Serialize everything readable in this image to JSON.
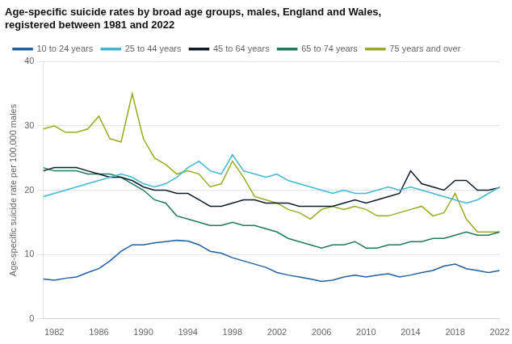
{
  "chart_data": {
    "type": "line",
    "title": [
      "Age-specific suicide rates by broad age groups, males, England and Wales,",
      "registered between 1981 and 2022"
    ],
    "ylabel": "Age-specific suicide rate per 100,000 males",
    "x": [
      1981,
      1982,
      1983,
      1984,
      1985,
      1986,
      1987,
      1988,
      1989,
      1990,
      1991,
      1992,
      1993,
      1994,
      1995,
      1996,
      1997,
      1998,
      1999,
      2000,
      2001,
      2002,
      2003,
      2004,
      2005,
      2006,
      2007,
      2008,
      2009,
      2010,
      2011,
      2012,
      2013,
      2014,
      2015,
      2016,
      2017,
      2018,
      2019,
      2020,
      2021,
      2022
    ],
    "series": [
      {
        "name": "10 to 24 years",
        "color": "#1f5fa6",
        "values": [
          6.2,
          6.0,
          6.3,
          6.5,
          7.2,
          7.8,
          9.0,
          10.5,
          11.5,
          11.5,
          11.8,
          12.0,
          12.2,
          12.1,
          11.5,
          10.5,
          10.2,
          9.5,
          9.0,
          8.5,
          8.0,
          7.2,
          6.8,
          6.5,
          6.2,
          5.8,
          6.0,
          6.5,
          6.8,
          6.5,
          6.8,
          7.0,
          6.5,
          6.8,
          7.2,
          7.5,
          8.2,
          8.5,
          7.8,
          7.5,
          7.2,
          7.5
        ]
      },
      {
        "name": "25 to 44 years",
        "color": "#41b8d5",
        "values": [
          19.0,
          19.5,
          20.0,
          20.5,
          21.0,
          21.5,
          22.0,
          22.5,
          22.0,
          21.0,
          20.5,
          21.0,
          22.0,
          23.5,
          24.5,
          23.0,
          22.5,
          25.5,
          23.0,
          22.5,
          22.0,
          22.5,
          21.5,
          21.0,
          20.5,
          20.0,
          19.5,
          20.0,
          19.5,
          19.5,
          20.0,
          20.5,
          20.0,
          20.5,
          20.0,
          19.5,
          19.0,
          18.5,
          18.0,
          18.5,
          19.5,
          20.5
        ]
      },
      {
        "name": "45 to 64 years",
        "color": "#0d1b2a",
        "values": [
          23.0,
          23.5,
          23.5,
          23.5,
          23.0,
          22.5,
          22.0,
          22.0,
          21.5,
          20.5,
          20.0,
          20.0,
          19.5,
          19.5,
          18.5,
          17.5,
          17.5,
          18.0,
          18.5,
          18.5,
          18.0,
          18.0,
          18.0,
          17.5,
          17.5,
          17.5,
          17.5,
          18.0,
          18.5,
          18.0,
          18.5,
          19.0,
          19.5,
          23.0,
          21.0,
          20.5,
          20.0,
          21.5,
          21.5,
          20.0,
          20.0,
          20.4
        ]
      },
      {
        "name": "65 to 74 years",
        "color": "#1e7b5e",
        "values": [
          23.5,
          23.0,
          23.0,
          23.0,
          22.5,
          22.5,
          22.5,
          22.0,
          21.0,
          20.0,
          18.5,
          18.0,
          16.0,
          15.5,
          15.0,
          14.5,
          14.5,
          15.0,
          14.5,
          14.5,
          14.0,
          13.5,
          12.5,
          12.0,
          11.5,
          11.0,
          11.5,
          11.5,
          12.0,
          11.0,
          11.0,
          11.5,
          11.5,
          12.0,
          12.0,
          12.5,
          12.5,
          13.0,
          13.5,
          13.0,
          13.0,
          13.5
        ]
      },
      {
        "name": "75 years and over",
        "color": "#9aaa1f",
        "values": [
          29.5,
          30.0,
          29.0,
          29.0,
          29.5,
          31.5,
          28.0,
          27.5,
          35.0,
          28.0,
          25.0,
          24.0,
          22.5,
          23.0,
          22.5,
          20.5,
          21.0,
          24.5,
          22.0,
          19.0,
          18.5,
          18.0,
          17.0,
          16.5,
          15.5,
          17.0,
          17.5,
          17.0,
          17.5,
          17.0,
          16.0,
          16.0,
          16.5,
          17.0,
          17.5,
          16.0,
          16.5,
          19.5,
          15.5,
          13.5,
          13.5,
          13.5
        ]
      }
    ],
    "xlim": [
      1981,
      2022
    ],
    "xticks": [
      1982,
      1986,
      1990,
      1994,
      1998,
      2002,
      2006,
      2010,
      2014,
      2018,
      2022
    ],
    "ylim": [
      0,
      40
    ],
    "yticks": [
      0,
      10,
      20,
      30,
      40
    ],
    "grid": "y",
    "legend": "top"
  }
}
